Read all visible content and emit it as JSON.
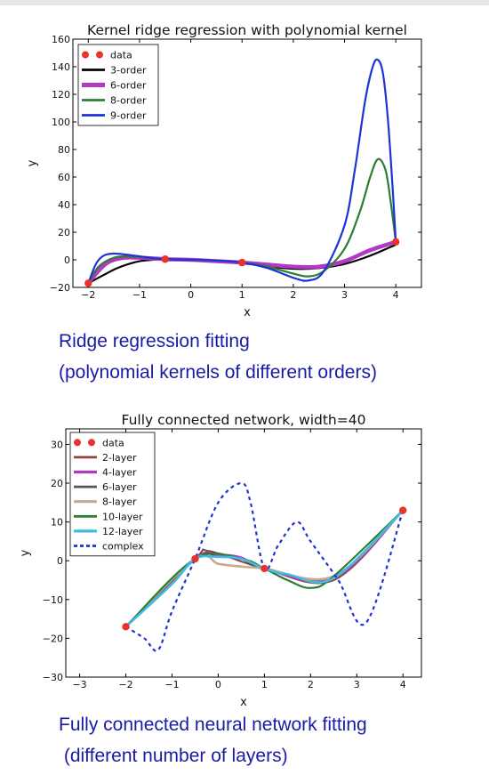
{
  "chart_data": [
    {
      "type": "line",
      "title": "Kernel ridge regression with polynomial kernel",
      "xlabel": "x",
      "ylabel": "y",
      "xlim": [
        -2.3,
        4.5
      ],
      "ylim": [
        -20,
        160
      ],
      "xticks": [
        -2,
        -1,
        0,
        1,
        2,
        3,
        4
      ],
      "yticks": [
        -20,
        0,
        20,
        40,
        60,
        80,
        100,
        120,
        140,
        160
      ],
      "legend_position": "top-left",
      "data_points": {
        "name": "data",
        "color": "#e8322b",
        "x": [
          -2,
          -0.5,
          1,
          4
        ],
        "y": [
          -17,
          0.5,
          -2,
          13
        ]
      },
      "series": [
        {
          "name": "3-order",
          "color": "#000000",
          "width": 2.2,
          "x": [
            -2,
            -1.7,
            -1.4,
            -1,
            -0.5,
            0,
            0.5,
            1,
            1.5,
            2,
            2.5,
            3,
            3.5,
            4
          ],
          "y": [
            -17,
            -11,
            -5.5,
            -1,
            0.5,
            0.5,
            -0.5,
            -2,
            -4.5,
            -6.5,
            -6,
            -3,
            3,
            11
          ]
        },
        {
          "name": "6-order",
          "color": "#b03ac4",
          "width": 4.5,
          "x": [
            -2,
            -1.8,
            -1.6,
            -1.3,
            -1,
            -0.5,
            0,
            0.5,
            1,
            1.5,
            2,
            2.5,
            3,
            3.5,
            4
          ],
          "y": [
            -17,
            -8,
            -1.5,
            1.5,
            1.5,
            0.5,
            0,
            -1,
            -2,
            -3.5,
            -5,
            -5,
            -1,
            7,
            13
          ]
        },
        {
          "name": "8-order",
          "color": "#2e7d32",
          "width": 2.2,
          "x": [
            -2,
            -1.8,
            -1.5,
            -1.2,
            -0.8,
            -0.5,
            0,
            0.5,
            1,
            1.5,
            2,
            2.3,
            2.6,
            3,
            3.3,
            3.5,
            3.65,
            3.8,
            3.9,
            4
          ],
          "y": [
            -17,
            -5,
            1.5,
            2.5,
            1.5,
            0.5,
            0,
            -0.5,
            -2,
            -5,
            -10,
            -12,
            -8,
            8,
            35,
            60,
            73,
            65,
            42,
            13
          ]
        },
        {
          "name": "9-order",
          "color": "#1d33d6",
          "width": 2.2,
          "x": [
            -2,
            -1.85,
            -1.7,
            -1.5,
            -1.2,
            -0.8,
            -0.5,
            0,
            0.5,
            1,
            1.5,
            2,
            2.3,
            2.6,
            3,
            3.2,
            3.4,
            3.55,
            3.65,
            3.75,
            3.85,
            3.95,
            4
          ],
          "y": [
            -17,
            -3,
            3,
            4.5,
            3.5,
            1.5,
            0.5,
            0,
            -0.5,
            -2,
            -6,
            -13,
            -15,
            -8,
            25,
            65,
            115,
            140,
            145,
            135,
            100,
            45,
            13
          ]
        }
      ]
    },
    {
      "type": "line",
      "title": "Fully connected network, width=40",
      "xlabel": "x",
      "ylabel": "y",
      "xlim": [
        -3.3,
        4.4
      ],
      "ylim": [
        -30,
        34
      ],
      "xticks": [
        -3,
        -2,
        -1,
        0,
        1,
        2,
        3,
        4
      ],
      "yticks": [
        -30,
        -20,
        -10,
        0,
        10,
        20,
        30
      ],
      "legend_position": "top-left",
      "data_points": {
        "name": "data",
        "color": "#e8322b",
        "x": [
          -2,
          -0.5,
          1,
          4
        ],
        "y": [
          -17,
          0.5,
          -2,
          13
        ]
      },
      "series": [
        {
          "name": "2-layer",
          "color": "#8c4a3a",
          "width": 2.2,
          "dash": "",
          "x": [
            -2,
            -0.5,
            -0.2,
            1,
            2.5,
            4
          ],
          "y": [
            -17,
            0.5,
            2.5,
            -2,
            -5,
            13
          ]
        },
        {
          "name": "4-layer",
          "color": "#b03ac4",
          "width": 2.6,
          "dash": "",
          "x": [
            -2,
            -0.5,
            0,
            0.5,
            1,
            2.5,
            4
          ],
          "y": [
            -17,
            0.5,
            1.5,
            0.8,
            -2,
            -4.5,
            13
          ]
        },
        {
          "name": "6-layer",
          "color": "#555555",
          "width": 2.2,
          "dash": "",
          "x": [
            -2,
            -0.5,
            0,
            0.5,
            1,
            2.5,
            4
          ],
          "y": [
            -17,
            0.5,
            1,
            0.5,
            -2,
            -4,
            13
          ]
        },
        {
          "name": "8-layer",
          "color": "#c8aa8a",
          "width": 2.6,
          "dash": "",
          "x": [
            -2,
            -0.5,
            0,
            0.5,
            1,
            2.5,
            4
          ],
          "y": [
            -17,
            0.5,
            -0.8,
            -1.5,
            -2,
            -4,
            13
          ]
        },
        {
          "name": "10-layer",
          "color": "#2e7d32",
          "width": 2.2,
          "dash": "",
          "x": [
            -2,
            -0.5,
            0.5,
            1,
            1.5,
            2,
            2.5,
            4
          ],
          "y": [
            -17,
            0.5,
            0.5,
            -2,
            -5,
            -7,
            -4,
            13
          ]
        },
        {
          "name": "12-layer",
          "color": "#3dbbe4",
          "width": 2.6,
          "dash": "",
          "x": [
            -2,
            -1,
            -0.5,
            0,
            0.5,
            1,
            1.5,
            2.5,
            4
          ],
          "y": [
            -17,
            -6,
            0.5,
            1,
            0.5,
            -2,
            -3.5,
            -4.5,
            13
          ]
        },
        {
          "name": "complex",
          "color": "#1d33d6",
          "width": 2.2,
          "dash": "4,4",
          "x": [
            -2,
            -1.6,
            -1.3,
            -1,
            -0.5,
            0,
            0.5,
            0.7,
            1,
            1.3,
            1.7,
            2,
            2.6,
            3.2,
            4
          ],
          "y": [
            -17,
            -20,
            -23,
            -13,
            0.5,
            15,
            20,
            15,
            -2,
            4,
            10,
            5,
            -5,
            -16,
            13
          ]
        }
      ]
    }
  ],
  "captions": {
    "top_line1": "Ridge regression fitting",
    "top_line2": "(polynomial kernels of different orders)",
    "bottom_line1": "Fully connected neural network fitting",
    "bottom_line2": " (different number of layers)"
  }
}
